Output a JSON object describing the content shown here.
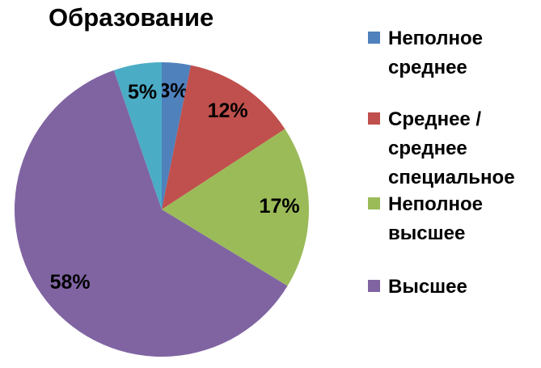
{
  "chart_data": {
    "type": "pie",
    "title": "Образование",
    "categories": [
      "Неполное среднее",
      "Среднее / среднее специальное",
      "Неполное высшее",
      "Высшее",
      null
    ],
    "values": [
      3,
      12,
      17,
      58,
      5
    ],
    "value_labels": [
      "3%",
      "12%",
      "17%",
      "58%",
      "5%"
    ],
    "colors": [
      "#4f81bd",
      "#c0504d",
      "#9bbb59",
      "#8064a2",
      "#4bacc6"
    ],
    "legend": "right"
  }
}
